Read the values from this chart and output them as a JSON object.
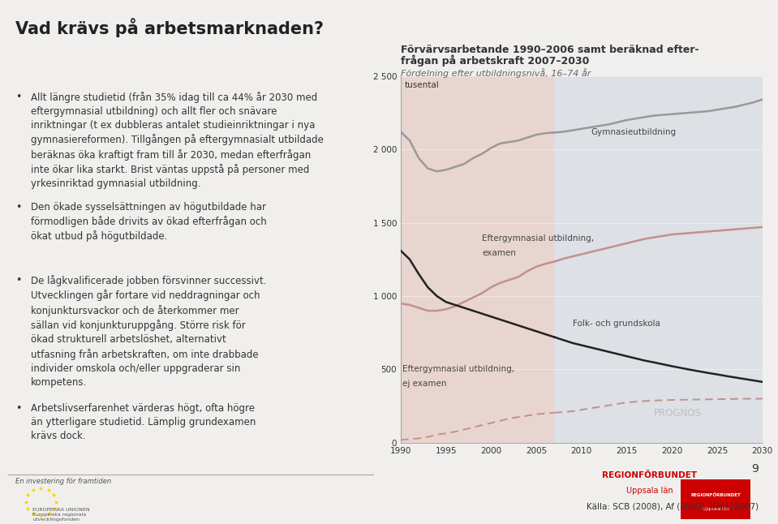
{
  "title_main": "Vad krävs på arbetsmarknaden?",
  "chart_title_line1": "Förvärvsarbetande 1990–2006 samt beräknad efter-",
  "chart_title_line2": "frågan på arbetskraft 2007–2030",
  "chart_subtitle": "Fördelning efter utbildningsnivå, 16–74 år",
  "ylabel_text": "tusental",
  "prognos_text": "PROGNOS",
  "source_text": "Källa: SCB (2008), Af (2009), IFAU (2007)",
  "page_number": "9",
  "bg_color": "#f0efed",
  "chart_bg_left": "#e8d5d0",
  "chart_bg_right": "#dde0e5",
  "years_historical": [
    1990,
    1991,
    1992,
    1993,
    1994,
    1995,
    1996,
    1997,
    1998,
    1999,
    2000,
    2001,
    2002,
    2003,
    2004,
    2005,
    2006
  ],
  "years_forecast": [
    2007,
    2008,
    2009,
    2010,
    2011,
    2012,
    2013,
    2014,
    2015,
    2016,
    2017,
    2018,
    2019,
    2020,
    2021,
    2022,
    2023,
    2024,
    2025,
    2026,
    2027,
    2028,
    2029,
    2030
  ],
  "gymnasieutbildning_hist": [
    2120,
    2060,
    1940,
    1870,
    1850,
    1860,
    1880,
    1900,
    1940,
    1970,
    2010,
    2040,
    2050,
    2060,
    2080,
    2100,
    2110
  ],
  "gymnasieutbildning_fore": [
    2115,
    2120,
    2130,
    2140,
    2150,
    2160,
    2170,
    2185,
    2200,
    2210,
    2220,
    2230,
    2235,
    2240,
    2245,
    2250,
    2255,
    2260,
    2270,
    2280,
    2290,
    2305,
    2320,
    2340
  ],
  "eftergymnasial_examen_hist": [
    950,
    940,
    920,
    900,
    900,
    910,
    930,
    960,
    990,
    1020,
    1060,
    1090,
    1110,
    1130,
    1170,
    1200,
    1220
  ],
  "eftergymnasial_examen_fore": [
    1235,
    1255,
    1270,
    1285,
    1300,
    1315,
    1330,
    1345,
    1360,
    1375,
    1390,
    1400,
    1410,
    1420,
    1425,
    1430,
    1435,
    1440,
    1445,
    1450,
    1455,
    1460,
    1465,
    1470
  ],
  "folk_grundskola_hist": [
    1310,
    1250,
    1150,
    1060,
    1000,
    960,
    940,
    920,
    900,
    880,
    860,
    840,
    820,
    800,
    780,
    760,
    740
  ],
  "folk_grundskola_fore": [
    720,
    700,
    680,
    665,
    650,
    635,
    620,
    605,
    590,
    575,
    560,
    548,
    535,
    522,
    510,
    498,
    487,
    476,
    466,
    455,
    445,
    435,
    425,
    415
  ],
  "eftergymnasial_ej_examen_hist": [
    20,
    25,
    30,
    40,
    55,
    65,
    75,
    90,
    105,
    120,
    135,
    150,
    165,
    175,
    185,
    195,
    200
  ],
  "eftergymnasial_ej_examen_fore": [
    205,
    210,
    215,
    225,
    235,
    245,
    255,
    265,
    275,
    280,
    285,
    288,
    290,
    292,
    293,
    294,
    295,
    296,
    297,
    298,
    299,
    300,
    300,
    300
  ],
  "color_gymnasieutbildning": "#999999",
  "color_eftergymnasial_examen": "#c4908a",
  "color_folk_grundskola": "#222222",
  "color_eftergymnasial_ej_examen": "#c4908a",
  "ylim": [
    0,
    2500
  ],
  "yticks": [
    0,
    500,
    1000,
    1500,
    2000,
    2500
  ],
  "ytick_labels": [
    "0",
    "500",
    "1 000",
    "1 500",
    "2 000",
    "2 500"
  ],
  "xticks": [
    1990,
    1995,
    2000,
    2005,
    2010,
    2015,
    2020,
    2025,
    2030
  ]
}
